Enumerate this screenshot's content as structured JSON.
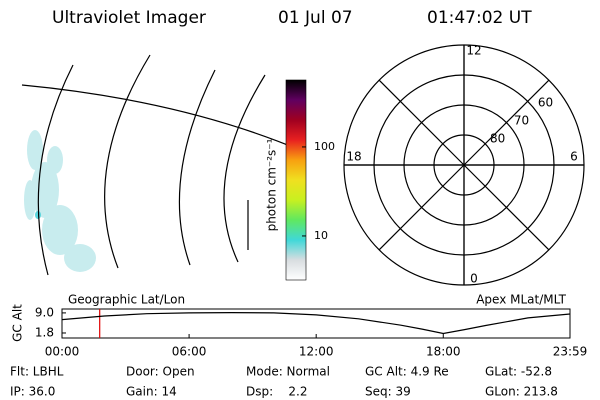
{
  "header": {
    "title": "Ultraviolet Imager",
    "date": "01 Jul 07",
    "time": "01:47:02 UT"
  },
  "chart_data": [
    {
      "type": "colorbar",
      "label": "photon cm⁻²s⁻¹",
      "log": true,
      "ylim": [
        3.2,
        565
      ],
      "yticks": [
        10,
        100
      ],
      "colors": [
        "#ffffff",
        "#d8dde0",
        "#40d8d8",
        "#60e860",
        "#c8f020",
        "#f0e020",
        "#f8a010",
        "#e82020",
        "#a00020",
        "#600060",
        "#000000"
      ]
    },
    {
      "type": "polar",
      "rlim": [
        90,
        50
      ],
      "rticks": [
        80,
        70,
        60
      ],
      "thetaticks": [
        12,
        18,
        6,
        0
      ]
    },
    {
      "type": "line",
      "ylabel": "GC Alt",
      "left_label": "Geographic Lat/Lon",
      "right_label": "Apex MLat/MLT",
      "xlim": [
        0,
        23.983
      ],
      "xticks": [
        {
          "value": 0,
          "label": "00:00"
        },
        {
          "value": 6,
          "label": "06:00"
        },
        {
          "value": 12,
          "label": "12:00"
        },
        {
          "value": 18,
          "label": "18:00"
        },
        {
          "value": 23.983,
          "label": "23:59"
        }
      ],
      "ylim": [
        0,
        10.4
      ],
      "yticks": [
        1.8,
        {
          "value": 9,
          "label": "9.0"
        }
      ],
      "x": [
        0,
        2,
        4,
        6,
        8,
        10,
        12,
        14,
        16,
        17,
        18,
        19,
        20,
        22,
        23.983
      ],
      "values": [
        6.6,
        7.9,
        8.7,
        9.0,
        9.1,
        9.0,
        8.3,
        6.9,
        4.6,
        3.2,
        1.6,
        3.0,
        4.5,
        7.2,
        8.6
      ],
      "color": "#000000",
      "marker": 1.78,
      "marker_color": "#e00000"
    }
  ],
  "info": [
    "Flt: LBHL",
    "Door: Open",
    "Mode: Normal",
    "GC Alt: 4.9 Re",
    "GLat: -52.8",
    "IP: 36.0",
    "Gain: 14",
    "Dsp:    2.2",
    "Seq: 39",
    "GLon: 213.8"
  ]
}
